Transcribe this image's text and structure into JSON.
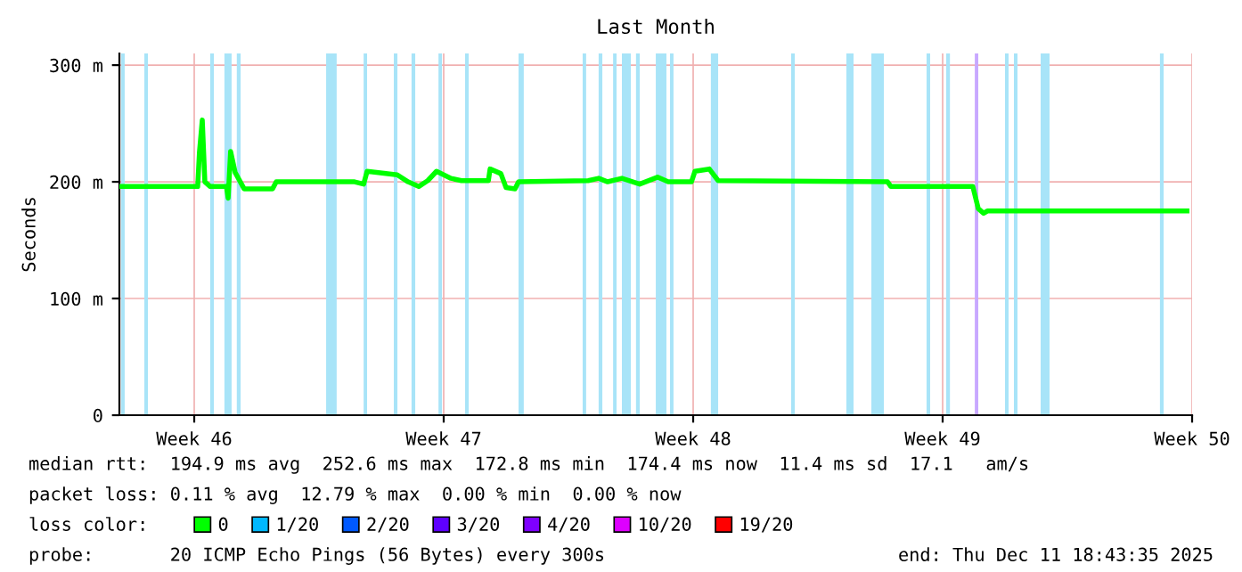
{
  "chart_data": {
    "type": "line",
    "title": "Last Month",
    "ylabel": "Seconds",
    "legend_title": "loss color:",
    "legend": "bottom",
    "grid": true,
    "marker": "none",
    "line_style": "solid",
    "xlim": [
      "2025-11-10T21:36",
      "2025-12-11T00:00"
    ],
    "xticks": [
      {
        "value": "2025-11-13",
        "label": "Week 46"
      },
      {
        "value": "2025-11-20",
        "label": "Week 47"
      },
      {
        "value": "2025-11-27",
        "label": "Week 48"
      },
      {
        "value": "2025-12-04",
        "label": "Week 49"
      },
      {
        "value": "2025-12-11",
        "label": "Week 50"
      }
    ],
    "ylim": [
      0,
      310
    ],
    "yticks": [
      0,
      {
        "value": 100,
        "label": "100 m"
      },
      {
        "value": 200,
        "label": "200 m"
      },
      {
        "value": 300,
        "label": "300 m"
      }
    ],
    "x": [
      "2025-11-10T21:36",
      "2025-11-13T02:20",
      "2025-11-13T03:30",
      "2025-11-13T05:25",
      "2025-11-13T07:10",
      "2025-11-13T10:45",
      "2025-11-13T21:40",
      "2025-11-13T22:50",
      "2025-11-14T00:30",
      "2025-11-14T03:35",
      "2025-11-14T09:35",
      "2025-11-15T04:45",
      "2025-11-15T07:15",
      "2025-11-17T12:00",
      "2025-11-17T18:05",
      "2025-11-17T20:25",
      "2025-11-18T16:45",
      "2025-11-19T00:00",
      "2025-11-19T07:10",
      "2025-11-19T13:15",
      "2025-11-19T19:10",
      "2025-11-20T04:55",
      "2025-11-20T11:55",
      "2025-11-21T06:05",
      "2025-11-21T07:15",
      "2025-11-21T14:30",
      "2025-11-21T18:00",
      "2025-11-22T00:00",
      "2025-11-22T02:25",
      "2025-11-24T01:20",
      "2025-11-24T08:20",
      "2025-11-24T14:25",
      "2025-11-25T00:00",
      "2025-11-25T12:00",
      "2025-11-26T00:00",
      "2025-11-26T07:10",
      "2025-11-26T22:50",
      "2025-11-27T01:10",
      "2025-11-27T10:50",
      "2025-11-27T16:50",
      "2025-12-02T10:55",
      "2025-12-02T13:10",
      "2025-12-04T20:20",
      "2025-12-05T00:00",
      "2025-12-05T03:35",
      "2025-12-05T06:05",
      "2025-12-10T20:30"
    ],
    "series": [
      {
        "name": "0",
        "color": "#00ff00",
        "values": [
          196,
          196,
          225,
          253,
          200,
          196,
          196,
          186,
          226,
          208,
          194,
          194,
          200,
          200,
          198,
          209,
          206,
          200,
          196,
          201,
          209,
          203,
          201,
          201,
          211,
          207,
          195,
          194,
          200,
          201,
          203,
          200,
          203,
          198,
          204,
          200,
          200,
          209,
          211,
          201,
          200,
          196,
          196,
          177,
          173,
          175,
          175
        ]
      },
      {
        "name": "1/20",
        "color": "#00b8ff",
        "values": [
          null,
          null,
          null,
          null,
          null,
          null,
          null,
          null,
          null,
          null,
          null,
          null,
          null,
          null,
          null,
          null,
          null,
          null,
          null,
          null,
          null,
          null,
          null,
          null,
          null,
          null,
          null,
          null,
          null,
          null,
          null,
          null,
          null,
          null,
          null,
          null,
          null,
          null,
          null,
          null,
          null,
          null,
          null,
          null,
          null,
          null,
          null
        ]
      },
      {
        "name": "2/20",
        "color": "#0059ff",
        "values": [
          null,
          null,
          null,
          null,
          null,
          null,
          null,
          null,
          null,
          null,
          null,
          null,
          null,
          null,
          null,
          null,
          null,
          null,
          null,
          null,
          null,
          null,
          null,
          null,
          null,
          null,
          null,
          null,
          null,
          null,
          null,
          null,
          null,
          null,
          null,
          null,
          null,
          null,
          null,
          null,
          null,
          null,
          null,
          null,
          null,
          null,
          null
        ]
      },
      {
        "name": "3/20",
        "color": "#5e00ff",
        "values": [
          null,
          null,
          null,
          null,
          null,
          null,
          null,
          null,
          null,
          null,
          null,
          null,
          null,
          null,
          null,
          null,
          null,
          null,
          null,
          null,
          null,
          null,
          null,
          null,
          null,
          null,
          null,
          null,
          null,
          null,
          null,
          null,
          null,
          null,
          null,
          null,
          null,
          null,
          null,
          null,
          null,
          null,
          null,
          null,
          null,
          null,
          null
        ]
      },
      {
        "name": "4/20",
        "color": "#7e00ff",
        "values": [
          null,
          null,
          null,
          null,
          null,
          null,
          null,
          null,
          null,
          null,
          null,
          null,
          null,
          null,
          null,
          null,
          null,
          null,
          null,
          null,
          null,
          null,
          null,
          null,
          null,
          null,
          null,
          null,
          null,
          null,
          null,
          null,
          null,
          null,
          null,
          null,
          null,
          null,
          null,
          null,
          null,
          null,
          null,
          null,
          null,
          null,
          null
        ]
      },
      {
        "name": "10/20",
        "color": "#dd00ff",
        "values": [
          null,
          null,
          null,
          null,
          null,
          null,
          null,
          null,
          null,
          null,
          null,
          null,
          null,
          null,
          null,
          null,
          null,
          null,
          null,
          null,
          null,
          null,
          null,
          null,
          null,
          null,
          null,
          null,
          null,
          null,
          null,
          null,
          null,
          null,
          null,
          null,
          null,
          null,
          null,
          null,
          null,
          null,
          null,
          null,
          null,
          null,
          null
        ]
      },
      {
        "name": "19/20",
        "color": "#ff0000",
        "values": [
          null,
          null,
          null,
          null,
          null,
          null,
          null,
          null,
          null,
          null,
          null,
          null,
          null,
          null,
          null,
          null,
          null,
          null,
          null,
          null,
          null,
          null,
          null,
          null,
          null,
          null,
          null,
          null,
          null,
          null,
          null,
          null,
          null,
          null,
          null,
          null,
          null,
          null,
          null,
          null,
          null,
          null,
          null,
          null,
          null,
          null,
          null
        ]
      }
    ],
    "bands": [
      {
        "axis": "x",
        "from": "2025-11-10T22:50",
        "to": "2025-11-11T01:10",
        "color": "#a8e4f8"
      },
      {
        "axis": "x",
        "from": "2025-11-11T14:25",
        "to": "2025-11-11T16:50",
        "color": "#a8e4f8"
      },
      {
        "axis": "x",
        "from": "2025-11-13T10:45",
        "to": "2025-11-13T13:15",
        "color": "#a8e4f8"
      },
      {
        "axis": "x",
        "from": "2025-11-13T20:20",
        "to": "2025-11-14T01:10",
        "color": "#a8e4f8"
      },
      {
        "axis": "x",
        "from": "2025-11-14T04:40",
        "to": "2025-11-14T07:15",
        "color": "#a8e4f8"
      },
      {
        "axis": "x",
        "from": "2025-11-16T16:50",
        "to": "2025-11-16T23:55",
        "color": "#a8e4f8"
      },
      {
        "axis": "x",
        "from": "2025-11-17T18:05",
        "to": "2025-11-17T20:25",
        "color": "#a8e4f8"
      },
      {
        "axis": "x",
        "from": "2025-11-18T14:25",
        "to": "2025-11-18T16:50",
        "color": "#a8e4f8"
      },
      {
        "axis": "x",
        "from": "2025-11-19T02:20",
        "to": "2025-11-19T04:50",
        "color": "#a8e4f8"
      },
      {
        "axis": "x",
        "from": "2025-11-19T20:30",
        "to": "2025-11-19T22:50",
        "color": "#a8e4f8"
      },
      {
        "axis": "x",
        "from": "2025-11-20T14:25",
        "to": "2025-11-20T16:50",
        "color": "#a8e4f8"
      },
      {
        "axis": "x",
        "from": "2025-11-22T02:25",
        "to": "2025-11-22T05:55",
        "color": "#a8e4f8"
      },
      {
        "axis": "x",
        "from": "2025-11-23T21:35",
        "to": "2025-11-23T23:55",
        "color": "#a8e4f8"
      },
      {
        "axis": "x",
        "from": "2025-11-24T08:20",
        "to": "2025-11-24T10:50",
        "color": "#a8e4f8"
      },
      {
        "axis": "x",
        "from": "2025-11-24T18:05",
        "to": "2025-11-24T20:25",
        "color": "#a8e4f8"
      },
      {
        "axis": "x",
        "from": "2025-11-25T00:00",
        "to": "2025-11-25T06:00",
        "color": "#a8e4f8"
      },
      {
        "axis": "x",
        "from": "2025-11-25T09:30",
        "to": "2025-11-25T12:00",
        "color": "#a8e4f8"
      },
      {
        "axis": "x",
        "from": "2025-11-25T22:50",
        "to": "2025-11-26T06:00",
        "color": "#a8e4f8"
      },
      {
        "axis": "x",
        "from": "2025-11-26T08:25",
        "to": "2025-11-26T10:45",
        "color": "#a8e4f8"
      },
      {
        "axis": "x",
        "from": "2025-11-27T11:55",
        "to": "2025-11-27T16:50",
        "color": "#a8e4f8"
      },
      {
        "axis": "x",
        "from": "2025-11-29T18:00",
        "to": "2025-11-29T20:25",
        "color": "#a8e4f8"
      },
      {
        "axis": "x",
        "from": "2025-12-01T07:10",
        "to": "2025-12-01T12:00",
        "color": "#a8e4f8"
      },
      {
        "axis": "x",
        "from": "2025-12-02T00:00",
        "to": "2025-12-02T08:25",
        "color": "#a8e4f8"
      },
      {
        "axis": "x",
        "from": "2025-12-03T13:10",
        "to": "2025-12-03T15:35",
        "color": "#a8e4f8"
      },
      {
        "axis": "x",
        "from": "2025-12-04T02:25",
        "to": "2025-12-04T04:55",
        "color": "#a8e4f8"
      },
      {
        "axis": "x",
        "from": "2025-12-04T21:40",
        "to": "2025-12-05T00:00",
        "color": "#c8a8ff"
      },
      {
        "axis": "x",
        "from": "2025-12-05T18:00",
        "to": "2025-12-05T20:25",
        "color": "#a8e4f8"
      },
      {
        "axis": "x",
        "from": "2025-12-06T00:00",
        "to": "2025-12-06T02:25",
        "color": "#a8e4f8"
      },
      {
        "axis": "x",
        "from": "2025-12-06T18:00",
        "to": "2025-12-07T00:00",
        "color": "#a8e4f8"
      },
      {
        "axis": "x",
        "from": "2025-12-10T02:20",
        "to": "2025-12-10T04:50",
        "color": "#a8e4f8"
      }
    ],
    "annotations": [
      "median rtt:  194.9 ms avg  252.6 ms max  172.8 ms min  174.4 ms now  11.4 ms sd  17.1   am/s",
      "packet loss: 0.11 % avg  12.79 % max  0.00 % min  0.00 % now",
      "probe:       20 ICMP Echo Pings (56 Bytes) every 300s",
      "end: Thu Dec 11 18:43:35 2025"
    ]
  }
}
